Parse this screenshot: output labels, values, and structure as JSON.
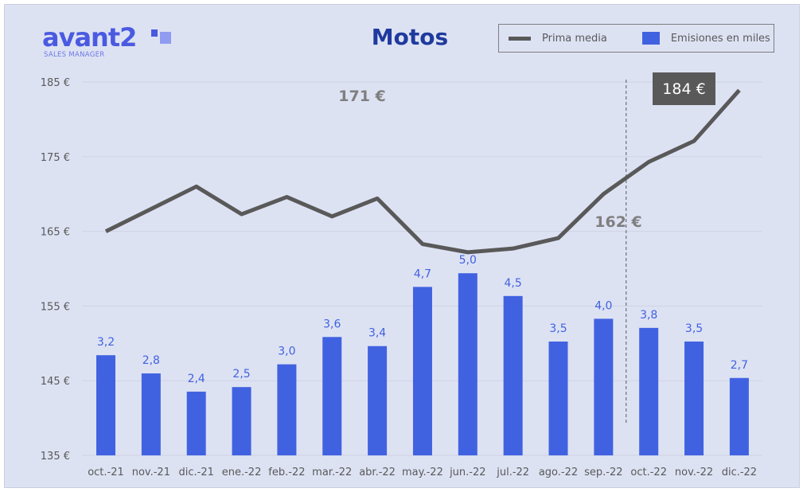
{
  "logo": {
    "word": "avant2",
    "sub": "SALES MANAGER"
  },
  "chart_data": {
    "type": "bar+line",
    "title": "Motos",
    "categories": [
      "oct.-21",
      "nov.-21",
      "dic.-21",
      "ene.-22",
      "feb.-22",
      "mar.-22",
      "abr.-22",
      "may.-22",
      "jun.-22",
      "jul.-22",
      "ago.-22",
      "sep.-22",
      "oct.-22",
      "nov.-22",
      "dic.-22"
    ],
    "series": [
      {
        "name": "Prima media",
        "type": "line",
        "axis": "left",
        "color": "#595959",
        "values": [
          165,
          168,
          171,
          167.3,
          169.6,
          167,
          169.4,
          163.3,
          162.2,
          162.7,
          164.1,
          170,
          174.3,
          177.1,
          183.9
        ]
      },
      {
        "name": "Emisiones en miles",
        "type": "bar",
        "axis": "right",
        "color": "#4162e0",
        "values": [
          3.2,
          2.8,
          2.4,
          2.5,
          3.0,
          3.6,
          3.4,
          4.7,
          5.0,
          4.5,
          3.5,
          4.0,
          3.8,
          3.5,
          2.7
        ],
        "labels": [
          "3,2",
          "2,8",
          "2,4",
          "2,5",
          "3,0",
          "3,6",
          "3,4",
          "4,7",
          "5,0",
          "4,5",
          "3,5",
          "4,0",
          "3,8",
          "3,5",
          "2,7"
        ]
      }
    ],
    "y_left": {
      "range": [
        135,
        185
      ],
      "ticks": [
        "135 €",
        "145 €",
        "155 €",
        "165 €",
        "175 €",
        "185 €"
      ]
    },
    "y_right": {
      "range": [
        1,
        9.2
      ],
      "visible": false
    },
    "grid": true,
    "legend": "top-right",
    "annotations": [
      "171 €",
      "162 €",
      "184 €"
    ],
    "divider_between": [
      "sep.-22",
      "oct.-22"
    ]
  }
}
